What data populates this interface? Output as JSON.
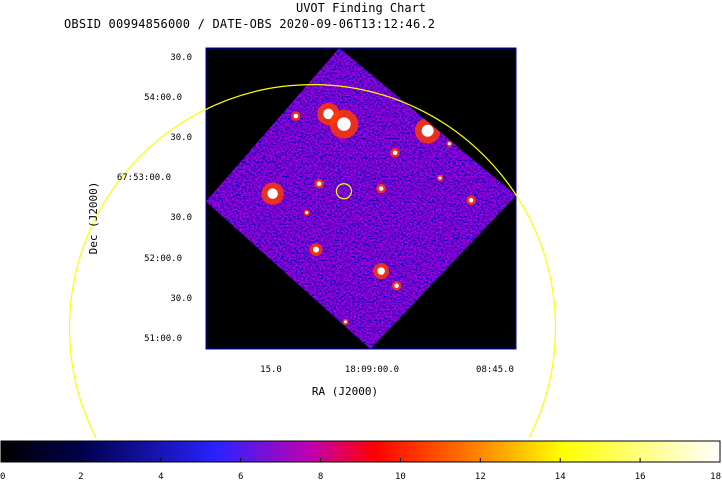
{
  "chart_data": {
    "type": "heatmap",
    "title": "UVOT Finding Chart",
    "subtitle": "OBSID 00994856000 / DATE-OBS 2020-09-06T13:12:46.2",
    "xlabel": "RA (J2000)",
    "ylabel": "Dec (J2000)",
    "x_ticks": [
      "15.0",
      "18:09:00.0",
      "08:45.0"
    ],
    "y_ticks": [
      "30.0",
      "54:00.0",
      "30.0",
      "67:53:00.0",
      "30.0",
      "52:00.0",
      "30.0",
      "51:00.0"
    ],
    "colorbar": {
      "min": 0,
      "max": 18,
      "ticks": [
        "0",
        "2",
        "4",
        "6",
        "8",
        "10",
        "12",
        "14",
        "16",
        "18"
      ],
      "colors": [
        "#000000",
        "#0000ff",
        "#ff0000",
        "#ffff00",
        "#ffffff"
      ]
    },
    "sources": [
      {
        "x": 0.29,
        "y": 0.226,
        "size": 3
      },
      {
        "x": 0.395,
        "y": 0.219,
        "size": 7
      },
      {
        "x": 0.445,
        "y": 0.253,
        "size": 9
      },
      {
        "x": 0.715,
        "y": 0.275,
        "size": 8
      },
      {
        "x": 0.785,
        "y": 0.318,
        "size": 2
      },
      {
        "x": 0.61,
        "y": 0.348,
        "size": 3
      },
      {
        "x": 0.365,
        "y": 0.451,
        "size": 3
      },
      {
        "x": 0.565,
        "y": 0.467,
        "size": 3
      },
      {
        "x": 0.755,
        "y": 0.432,
        "size": 2
      },
      {
        "x": 0.855,
        "y": 0.506,
        "size": 3
      },
      {
        "x": 0.215,
        "y": 0.484,
        "size": 7
      },
      {
        "x": 0.325,
        "y": 0.547,
        "size": 2
      },
      {
        "x": 0.355,
        "y": 0.67,
        "size": 4
      },
      {
        "x": 0.565,
        "y": 0.741,
        "size": 5
      },
      {
        "x": 0.615,
        "y": 0.79,
        "size": 3
      },
      {
        "x": 0.45,
        "y": 0.91,
        "size": 2
      }
    ],
    "grid": false
  }
}
